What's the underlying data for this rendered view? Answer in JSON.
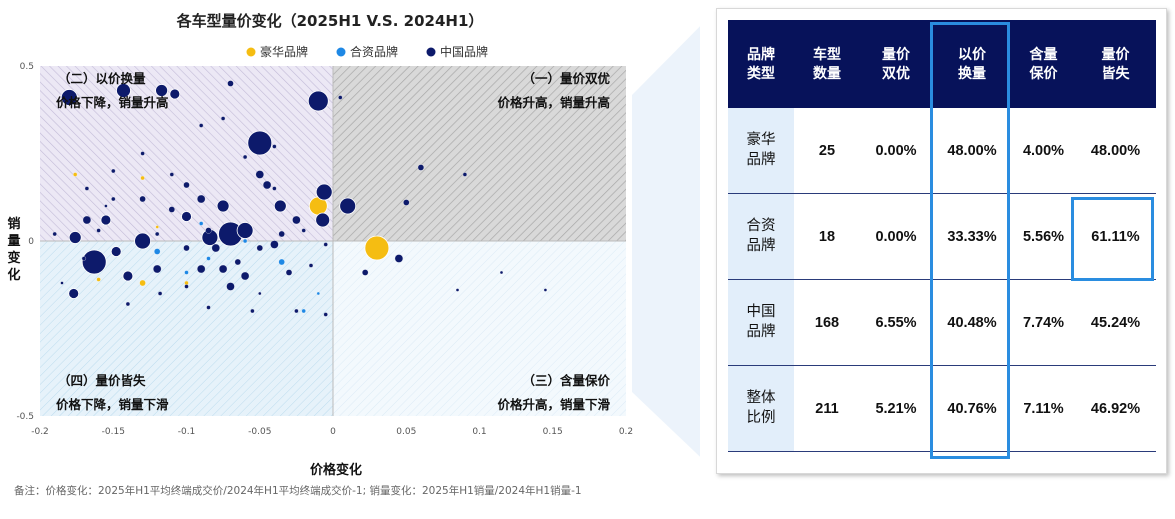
{
  "chart_title": "各车型量价变化（2025H1 V.S. 2024H1）",
  "legend": [
    {
      "label": "豪华品牌",
      "color": "#f5bd12"
    },
    {
      "label": "合资品牌",
      "color": "#1e88e5"
    },
    {
      "label": "中国品牌",
      "color": "#0d1a6b"
    }
  ],
  "quadrants": {
    "q1": {
      "name": "（一）量价双优",
      "desc": "价格升高，销量升高"
    },
    "q2": {
      "name": "（二）以价换量",
      "desc": "价格下降，销量升高"
    },
    "q3": {
      "name": "（三）含量保价",
      "desc": "价格升高，销量下滑"
    },
    "q4": {
      "name": "（四）量价皆失",
      "desc": "价格下降，销量下滑"
    }
  },
  "xlabel": "价格变化",
  "ylabel": "销量变化",
  "note": "备注：价格变化：2025年H1平均终端成交价/2024年H1平均终端成交价-1;  销量变化：2025年H1销量/2024年H1销量-1",
  "chart_data": {
    "type": "scatter",
    "title": "各车型量价变化（2025H1 V.S. 2024H1）",
    "xlabel": "价格变化",
    "ylabel": "销量变化",
    "xlim": [
      -0.2,
      0.2
    ],
    "ylim": [
      -0.5,
      0.5
    ],
    "x_ticks": [
      "-0.2",
      "-0.15",
      "-0.1",
      "-0.05",
      "0",
      "0.05",
      "0.1",
      "0.15",
      "0.2"
    ],
    "y_ticks": [
      "0.5",
      "0",
      "-0.5"
    ],
    "grid": false,
    "legend_position": "top",
    "series": [
      {
        "name": "豪华品牌",
        "color": "#f5bd12",
        "points": [
          [
            0.03,
            -0.02,
            12
          ],
          [
            -0.01,
            0.1,
            9
          ],
          [
            -0.176,
            0.19,
            2
          ],
          [
            -0.13,
            0.18,
            2
          ],
          [
            -0.16,
            -0.11,
            2
          ],
          [
            -0.13,
            -0.12,
            3
          ],
          [
            -0.1,
            -0.12,
            2
          ],
          [
            -0.12,
            0.04,
            1.5
          ]
        ]
      },
      {
        "name": "合资品牌",
        "color": "#1e88e5",
        "points": [
          [
            -0.12,
            -0.03,
            3
          ],
          [
            -0.035,
            -0.06,
            3
          ],
          [
            -0.1,
            -0.09,
            2
          ],
          [
            -0.09,
            0.05,
            2
          ],
          [
            -0.02,
            -0.2,
            2
          ],
          [
            -0.06,
            0.0,
            2
          ],
          [
            -0.085,
            -0.05,
            2
          ],
          [
            -0.01,
            -0.15,
            1.5
          ]
        ]
      },
      {
        "name": "中国品牌",
        "color": "#0d1a6b",
        "points": [
          [
            -0.05,
            0.28,
            12
          ],
          [
            -0.163,
            -0.06,
            12
          ],
          [
            -0.07,
            0.02,
            12
          ],
          [
            -0.01,
            0.4,
            10
          ],
          [
            -0.18,
            0.41,
            8
          ],
          [
            -0.143,
            0.43,
            7
          ],
          [
            -0.117,
            0.43,
            6
          ],
          [
            -0.108,
            0.42,
            5
          ],
          [
            -0.006,
            0.14,
            8
          ],
          [
            0.01,
            0.1,
            8
          ],
          [
            -0.007,
            0.06,
            7
          ],
          [
            -0.13,
            0.0,
            8
          ],
          [
            -0.084,
            0.01,
            8
          ],
          [
            -0.06,
            0.03,
            8
          ],
          [
            -0.036,
            0.1,
            6
          ],
          [
            -0.075,
            0.1,
            6
          ],
          [
            -0.155,
            0.06,
            5
          ],
          [
            -0.168,
            0.06,
            4
          ],
          [
            -0.176,
            0.01,
            6
          ],
          [
            -0.148,
            -0.03,
            5
          ],
          [
            -0.14,
            -0.1,
            5
          ],
          [
            -0.177,
            -0.15,
            5
          ],
          [
            -0.12,
            -0.08,
            4
          ],
          [
            -0.09,
            -0.08,
            4
          ],
          [
            -0.07,
            -0.13,
            4
          ],
          [
            -0.05,
            0.19,
            4
          ],
          [
            -0.045,
            0.16,
            4
          ],
          [
            -0.1,
            0.16,
            3
          ],
          [
            -0.1,
            0.07,
            5
          ],
          [
            -0.08,
            -0.02,
            4
          ],
          [
            -0.06,
            -0.1,
            4
          ],
          [
            -0.03,
            -0.09,
            3
          ],
          [
            -0.04,
            -0.01,
            4
          ],
          [
            -0.025,
            0.06,
            4
          ],
          [
            -0.09,
            0.12,
            4
          ],
          [
            -0.11,
            0.09,
            3
          ],
          [
            -0.13,
            0.12,
            3
          ],
          [
            -0.168,
            0.15,
            2
          ],
          [
            0.022,
            -0.09,
            3
          ],
          [
            0.045,
            -0.05,
            4
          ],
          [
            0.06,
            0.21,
            3
          ],
          [
            0.05,
            0.11,
            3
          ],
          [
            0.09,
            0.19,
            2
          ],
          [
            -0.075,
            -0.08,
            4
          ],
          [
            -0.1,
            -0.02,
            3
          ],
          [
            -0.12,
            0.02,
            2
          ],
          [
            -0.085,
            0.03,
            3
          ],
          [
            -0.065,
            -0.06,
            3
          ],
          [
            -0.05,
            -0.02,
            3
          ],
          [
            -0.035,
            0.02,
            3
          ],
          [
            -0.02,
            0.03,
            2
          ],
          [
            -0.015,
            -0.07,
            2
          ],
          [
            -0.1,
            -0.13,
            2
          ],
          [
            -0.118,
            -0.15,
            2
          ],
          [
            -0.14,
            -0.18,
            2
          ],
          [
            -0.085,
            -0.19,
            2
          ],
          [
            -0.055,
            -0.2,
            2
          ],
          [
            -0.025,
            -0.2,
            2
          ],
          [
            -0.005,
            -0.21,
            2
          ],
          [
            -0.17,
            -0.05,
            2
          ],
          [
            -0.16,
            0.03,
            2
          ],
          [
            -0.15,
            0.12,
            2
          ],
          [
            -0.13,
            0.25,
            2
          ],
          [
            -0.11,
            0.19,
            2
          ],
          [
            -0.075,
            0.35,
            2
          ],
          [
            -0.04,
            0.15,
            2
          ],
          [
            -0.07,
            0.45,
            3
          ],
          [
            0.005,
            0.41,
            2
          ],
          [
            -0.09,
            0.33,
            2
          ],
          [
            -0.06,
            0.24,
            2
          ],
          [
            -0.04,
            0.27,
            2
          ],
          [
            -0.15,
            0.2,
            2
          ],
          [
            -0.19,
            0.02,
            2
          ],
          [
            0.085,
            -0.14,
            1.5
          ],
          [
            0.145,
            -0.14,
            1.5
          ],
          [
            0.115,
            -0.09,
            1.5
          ],
          [
            -0.005,
            -0.01,
            2
          ],
          [
            -0.185,
            -0.12,
            1.5
          ],
          [
            -0.155,
            0.1,
            1.5
          ],
          [
            -0.05,
            -0.15,
            1.5
          ]
        ]
      }
    ]
  },
  "table": {
    "headers": [
      "品牌\n类型",
      "车型\n数量",
      "量价\n双优",
      "以价\n换量",
      "含量\n保价",
      "量价\n皆失"
    ],
    "rows": [
      [
        "豪华\n品牌",
        "25",
        "0.00%",
        "48.00%",
        "4.00%",
        "48.00%"
      ],
      [
        "合资\n品牌",
        "18",
        "0.00%",
        "33.33%",
        "5.56%",
        "61.11%"
      ],
      [
        "中国\n品牌",
        "168",
        "6.55%",
        "40.48%",
        "7.74%",
        "45.24%"
      ],
      [
        "整体\n比例",
        "211",
        "5.21%",
        "40.76%",
        "7.11%",
        "46.92%"
      ]
    ]
  }
}
